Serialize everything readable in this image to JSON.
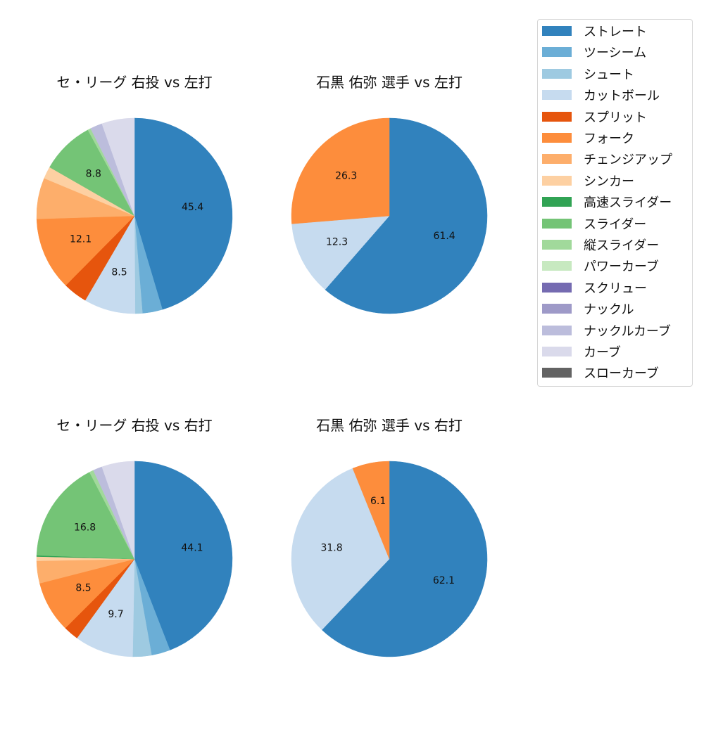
{
  "legend": {
    "items": [
      {
        "label": "ストレート",
        "color": "#3182bd"
      },
      {
        "label": "ツーシーム",
        "color": "#6baed6"
      },
      {
        "label": "シュート",
        "color": "#9ecae1"
      },
      {
        "label": "カットボール",
        "color": "#c6dbef"
      },
      {
        "label": "スプリット",
        "color": "#e6550d"
      },
      {
        "label": "フォーク",
        "color": "#fd8d3c"
      },
      {
        "label": "チェンジアップ",
        "color": "#fdae6b"
      },
      {
        "label": "シンカー",
        "color": "#fdd0a2"
      },
      {
        "label": "高速スライダー",
        "color": "#31a354"
      },
      {
        "label": "スライダー",
        "color": "#74c476"
      },
      {
        "label": "縦スライダー",
        "color": "#a1d99b"
      },
      {
        "label": "パワーカーブ",
        "color": "#c7e9c0"
      },
      {
        "label": "スクリュー",
        "color": "#756bb1"
      },
      {
        "label": "ナックル",
        "color": "#9e9ac8"
      },
      {
        "label": "ナックルカーブ",
        "color": "#bcbddc"
      },
      {
        "label": "カーブ",
        "color": "#dadaeb"
      },
      {
        "label": "スローカーブ",
        "color": "#636363"
      }
    ]
  },
  "chart_data": [
    {
      "type": "pie",
      "title": "セ・リーグ 右投 vs 左打",
      "startangle": 90,
      "counterclock": false,
      "categories": [
        "ストレート",
        "ツーシーム",
        "シュート",
        "カットボール",
        "スプリット",
        "フォーク",
        "チェンジアップ",
        "シンカー",
        "高速スライダー",
        "スライダー",
        "縦スライダー",
        "パワーカーブ",
        "スクリュー",
        "ナックル",
        "ナックルカーブ",
        "カーブ",
        "スローカーブ"
      ],
      "values": [
        45.4,
        3.3,
        1.2,
        8.5,
        4.0,
        12.1,
        6.8,
        2.0,
        0,
        8.8,
        0.5,
        0,
        0,
        0,
        2.0,
        5.4,
        0
      ],
      "labels": [
        "45.4",
        "",
        "",
        "8.5",
        "",
        "12.1",
        "",
        "",
        "",
        "8.8",
        "",
        "",
        "",
        "",
        "",
        "",
        ""
      ]
    },
    {
      "type": "pie",
      "title": "石黒 佑弥 選手 vs 左打",
      "startangle": 90,
      "counterclock": false,
      "categories": [
        "ストレート",
        "ツーシーム",
        "シュート",
        "カットボール",
        "スプリット",
        "フォーク",
        "チェンジアップ",
        "シンカー",
        "高速スライダー",
        "スライダー",
        "縦スライダー",
        "パワーカーブ",
        "スクリュー",
        "ナックル",
        "ナックルカーブ",
        "カーブ",
        "スローカーブ"
      ],
      "values": [
        61.4,
        0,
        0,
        12.3,
        0,
        26.3,
        0,
        0,
        0,
        0,
        0,
        0,
        0,
        0,
        0,
        0,
        0
      ],
      "labels": [
        "61.4",
        "",
        "",
        "12.3",
        "",
        "26.3",
        "",
        "",
        "",
        "",
        "",
        "",
        "",
        "",
        "",
        "",
        ""
      ]
    },
    {
      "type": "pie",
      "title": "セ・リーグ 右投 vs 右打",
      "startangle": 90,
      "counterclock": false,
      "categories": [
        "ストレート",
        "ツーシーム",
        "シュート",
        "カットボール",
        "スプリット",
        "フォーク",
        "チェンジアップ",
        "シンカー",
        "高速スライダー",
        "スライダー",
        "縦スライダー",
        "パワーカーブ",
        "スクリュー",
        "ナックル",
        "ナックルカーブ",
        "カーブ",
        "スローカーブ"
      ],
      "values": [
        44.1,
        3.1,
        3.1,
        9.7,
        2.5,
        8.5,
        3.7,
        0.7,
        0.2,
        16.8,
        0.7,
        0,
        0,
        0,
        1.5,
        5.4,
        0
      ],
      "labels": [
        "44.1",
        "",
        "",
        "9.7",
        "",
        "8.5",
        "",
        "",
        "",
        "16.8",
        "",
        "",
        "",
        "",
        "",
        "",
        ""
      ]
    },
    {
      "type": "pie",
      "title": "石黒 佑弥 選手 vs 右打",
      "startangle": 90,
      "counterclock": false,
      "categories": [
        "ストレート",
        "ツーシーム",
        "シュート",
        "カットボール",
        "スプリット",
        "フォーク",
        "チェンジアップ",
        "シンカー",
        "高速スライダー",
        "スライダー",
        "縦スライダー",
        "パワーカーブ",
        "スクリュー",
        "ナックル",
        "ナックルカーブ",
        "カーブ",
        "スローカーブ"
      ],
      "values": [
        62.1,
        0,
        0,
        31.8,
        0,
        6.1,
        0,
        0,
        0,
        0,
        0,
        0,
        0,
        0,
        0,
        0,
        0
      ],
      "labels": [
        "62.1",
        "",
        "",
        "31.8",
        "",
        "6.1",
        "",
        "",
        "",
        "",
        "",
        "",
        "",
        "",
        "",
        "",
        ""
      ]
    }
  ]
}
